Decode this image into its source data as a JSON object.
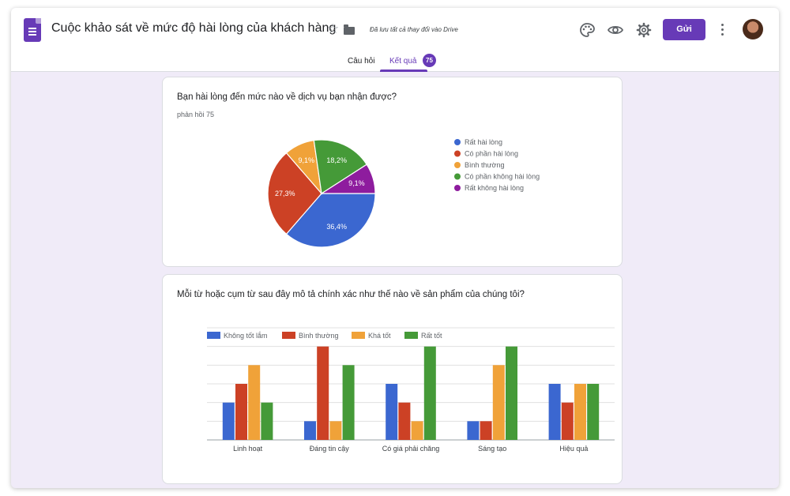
{
  "header": {
    "title": "Cuộc khảo sát về mức độ hài lòng của khách hàng",
    "saved_status": "Đã lưu tất cả thay đổi vào Drive",
    "send_label": "Gửi"
  },
  "tabs": [
    {
      "label": "Câu hỏi"
    },
    {
      "label": "Kết quả",
      "badge": "75"
    }
  ],
  "colors": {
    "accent": "#673ab7",
    "blue": "#3b67d0",
    "red": "#cc4125",
    "orange": "#f0a239",
    "green": "#459a38",
    "purple": "#8e1c9e"
  },
  "question1": {
    "title": "Bạn hài lòng đến mức nào về dịch vụ bạn nhận được?",
    "responses": "phản hồi 75"
  },
  "question2": {
    "title": "Mỗi từ hoặc cụm từ sau đây mô tả chính xác như thế nào về sản phẩm của chúng tôi?"
  },
  "chart_data": [
    {
      "type": "pie",
      "legend_position": "right",
      "slices": [
        {
          "label": "Rất hài lòng",
          "value": 36.4,
          "display": "36,4%",
          "color": "#3b67d0"
        },
        {
          "label": "Có phần hài lòng",
          "value": 27.3,
          "display": "27,3%",
          "color": "#cc4125"
        },
        {
          "label": "Bình thường",
          "value": 9.1,
          "display": "9,1%",
          "color": "#f0a239"
        },
        {
          "label": "Có phần không hài lòng",
          "value": 18.2,
          "display": "18,2%",
          "color": "#459a38"
        },
        {
          "label": "Rất không hài lòng",
          "value": 9.1,
          "display": "9,1%",
          "color": "#8e1c9e"
        }
      ]
    },
    {
      "type": "bar",
      "legend_position": "top",
      "grid": true,
      "ylim": [
        0,
        6
      ],
      "categories": [
        "Linh hoạt",
        "Đáng tin cậy",
        "Có giá phải chăng",
        "Sáng tạo",
        "Hiệu quả"
      ],
      "series": [
        {
          "name": "Không tốt lắm",
          "color": "#3b67d0",
          "values": [
            2,
            1,
            3,
            1,
            3
          ]
        },
        {
          "name": "Bình thường",
          "color": "#cc4125",
          "values": [
            3,
            5,
            2,
            1,
            2
          ]
        },
        {
          "name": "Khá tốt",
          "color": "#f0a239",
          "values": [
            4,
            1,
            1,
            4,
            3
          ]
        },
        {
          "name": "Rất tốt",
          "color": "#459a38",
          "values": [
            2,
            4,
            5,
            5,
            3
          ]
        }
      ]
    }
  ]
}
